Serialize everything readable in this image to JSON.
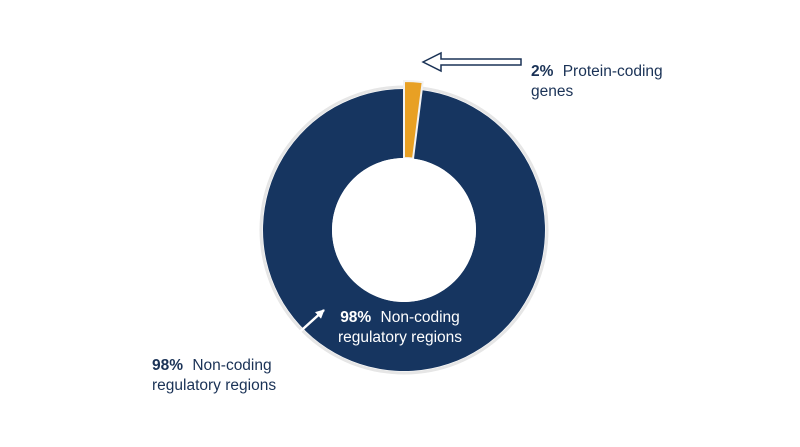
{
  "chart_data": {
    "type": "pie",
    "style": "donut",
    "slices": [
      {
        "percent_label": "98%",
        "label_lines": [
          "Non-coding",
          "regulatory regions"
        ],
        "value": 98,
        "color": "#163560"
      },
      {
        "percent_label": "2%",
        "label_lines": [
          "Protein-coding",
          "genes"
        ],
        "value": 2,
        "color": "#e8a024"
      }
    ],
    "callouts": [
      {
        "percent_label": "98%",
        "label_lines": [
          "Non-coding",
          "regulatory regions"
        ]
      }
    ],
    "ring_border_color": "#e6e6e6",
    "callout_text_color": "#1a3256",
    "inner_text_color": "#ffffff"
  }
}
